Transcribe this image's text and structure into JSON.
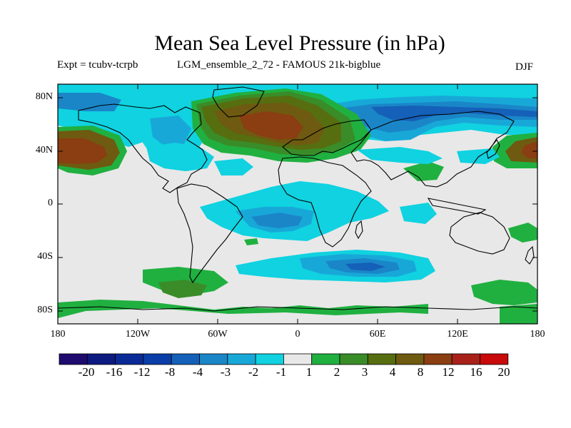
{
  "title": "Mean Sea Level Pressure (in hPa)",
  "experiment": "Expt = tcubv-tcrpb",
  "ensemble": "LGM_ensemble_2_72 - FAMOUS 21k-bigblue",
  "season": "DJF",
  "lat_labels": [
    "80N",
    "40N",
    "0",
    "40S",
    "80S"
  ],
  "lon_labels": [
    "180",
    "120W",
    "60W",
    "0",
    "60E",
    "120E",
    "180"
  ],
  "colorbar": {
    "labels": [
      "-20",
      "-16",
      "-12",
      "-8",
      "-4",
      "-3",
      "-2",
      "-1",
      "1",
      "2",
      "3",
      "4",
      "8",
      "12",
      "16",
      "20"
    ],
    "colors": [
      "#1f0a6e",
      "#0d1a80",
      "#0a2a96",
      "#0a3ea8",
      "#1560b8",
      "#1a86c8",
      "#18a8d8",
      "#10d2e0",
      "#e8e8e8",
      "#20b040",
      "#3a8c28",
      "#566e10",
      "#6e5a10",
      "#8a3e12",
      "#a8221a",
      "#c80a0a"
    ]
  },
  "map_colors": {
    "neutral": "#e8e8e8",
    "cyan": "#10d2e0",
    "lightblue": "#18a8d8",
    "midblue": "#1a86c8",
    "blue": "#1560b8",
    "darkblue": "#0a3ea8",
    "green": "#20b040",
    "darkgreen": "#3a8c28",
    "olive": "#566e10",
    "brown": "#6e5a10",
    "redbrown": "#8a3e12"
  }
}
